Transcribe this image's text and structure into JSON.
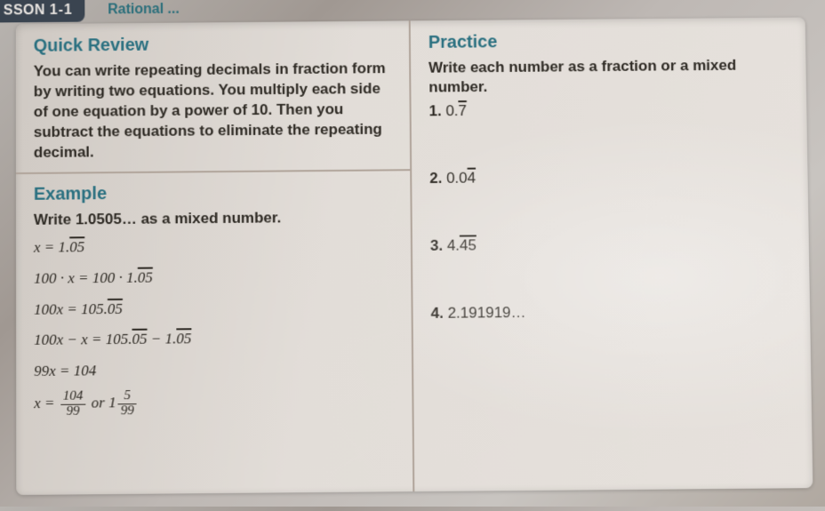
{
  "tabs": {
    "lesson_partial": "SSON",
    "lesson_number": "1-1",
    "title_partial": "Rational ..."
  },
  "left": {
    "quick_review_heading": "Quick Review",
    "quick_review_text": "You can write repeating decimals in fraction form by writing two equations. You multiply each side of one equation by a power of 10. Then you subtract the equations to eliminate the repeating decimal.",
    "example_heading": "Example",
    "example_prompt": "Write 1.0505… as a mixed number.",
    "steps": {
      "s1_pre": "x = 1.",
      "s1_ovl": "05",
      "s2_pre": "100 · x = 100 · 1.",
      "s2_ovl": "05",
      "s3_pre": "100x = 105.",
      "s3_ovl": "05",
      "s4_pre": "100x − x = 105.",
      "s4_ovl1": "05",
      "s4_mid": " − 1.",
      "s4_ovl2": "05",
      "s5": "99x = 104",
      "s6_pre": "x = ",
      "s6_frac1_n": "104",
      "s6_frac1_d": "99",
      "s6_mid": " or 1",
      "s6_frac2_n": "5",
      "s6_frac2_d": "99"
    }
  },
  "right": {
    "practice_heading": "Practice",
    "practice_prompt": "Write each number as a fraction or a mixed number.",
    "problems": {
      "p1_num": "1.",
      "p1_pre": " 0.",
      "p1_ovl": "7",
      "p2_num": "2.",
      "p2_pre": " 0.0",
      "p2_ovl": "4",
      "p3_num": "3.",
      "p3_pre": " 4.",
      "p3_ovl": "45",
      "p4_num": "4.",
      "p4_val": " 2.191919…"
    }
  },
  "colors": {
    "heading": "#2a7080",
    "text": "#2e2a24",
    "rule": "#b0a49a",
    "tab_bg": "#3a4450"
  }
}
